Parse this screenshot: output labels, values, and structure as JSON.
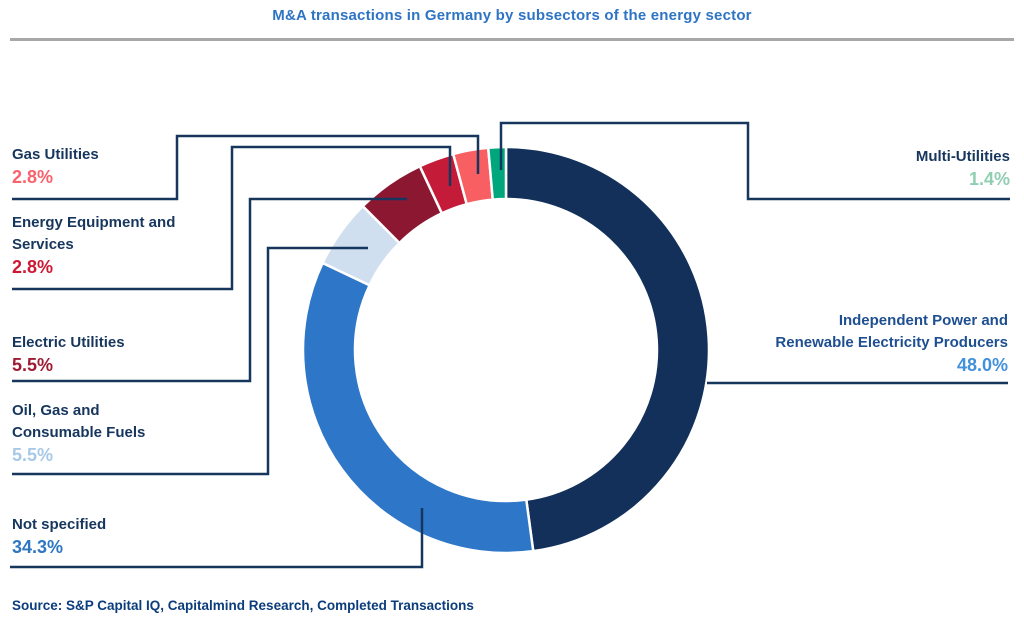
{
  "title": "M&A transactions in Germany by subsectors of the energy sector",
  "source": "Source: S&P Capital IQ, Capitalmind Research, Completed Transactions",
  "colors": {
    "title": "#2e74c4",
    "title_rule": "#a8a8a8",
    "leader_line": "#17365d",
    "source_text": "#0b3d7c",
    "background": "#ffffff",
    "segment_gap": "#ffffff"
  },
  "chart_data": {
    "type": "pie",
    "subtype": "donut",
    "title": "M&A transactions in Germany by subsectors of the energy sector",
    "direction": "clockwise",
    "start_angle_deg": 0,
    "legend_position": "callouts",
    "segments": [
      {
        "label": "Independent Power and Renewable Electricity Producers",
        "label_lines": [
          "Independent Power and",
          "Renewable Electricity Producers"
        ],
        "value": 48.0,
        "display": "48.0%",
        "color": "#12305a",
        "label_color": "#1e4f91",
        "pct_color": "#4291dc"
      },
      {
        "label": "Not specified",
        "label_lines": [
          "Not specified"
        ],
        "value": 34.3,
        "display": "34.3%",
        "color": "#2e77c8",
        "label_color": "#17365d",
        "pct_color": "#2e76c3"
      },
      {
        "label": "Oil, Gas and Consumable Fuels",
        "label_lines": [
          "Oil, Gas and",
          "Consumable Fuels"
        ],
        "value": 5.5,
        "display": "5.5%",
        "color": "#cfdff0",
        "label_color": "#17365d",
        "pct_color": "#a6c9e8"
      },
      {
        "label": "Electric Utilities",
        "label_lines": [
          "Electric Utilities"
        ],
        "value": 5.5,
        "display": "5.5%",
        "color": "#8b1731",
        "label_color": "#17365d",
        "pct_color": "#9e1b33"
      },
      {
        "label": "Energy Equipment and Services",
        "label_lines": [
          "Energy Equipment and",
          "Services"
        ],
        "value": 2.8,
        "display": "2.8%",
        "color": "#c31b38",
        "label_color": "#17365d",
        "pct_color": "#cd1733"
      },
      {
        "label": "Gas Utilities",
        "label_lines": [
          "Gas Utilities"
        ],
        "value": 2.8,
        "display": "2.8%",
        "color": "#f85f63",
        "label_color": "#17365d",
        "pct_color": "#f9626c"
      },
      {
        "label": "Multi-Utilities",
        "label_lines": [
          "Multi-Utilities"
        ],
        "value": 1.4,
        "display": "1.4%",
        "color": "#00a77d",
        "label_color": "#17365d",
        "pct_color": "#90ceb2"
      }
    ]
  }
}
